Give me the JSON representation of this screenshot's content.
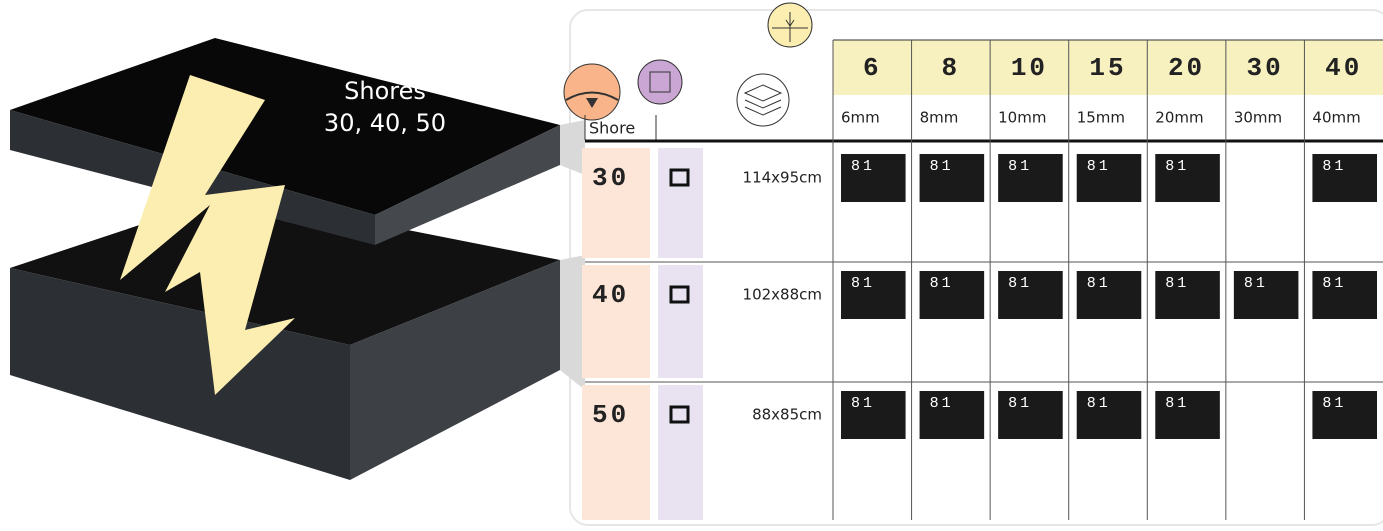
{
  "label": {
    "line1": "Shores",
    "line2": "30, 40, 50"
  },
  "table": {
    "shore_header": "Shore",
    "thickness": [
      "6",
      "8",
      "10",
      "15",
      "20",
      "30",
      "40"
    ],
    "thickness_mm": [
      "6mm",
      "8mm",
      "10mm",
      "15mm",
      "20mm",
      "30mm",
      "40mm"
    ],
    "rows": [
      {
        "shore": "30",
        "size": "114x95cm",
        "cells": [
          "81",
          "81",
          "81",
          "81",
          "81",
          null,
          "81"
        ]
      },
      {
        "shore": "40",
        "size": "102x88cm",
        "cells": [
          "81",
          "81",
          "81",
          "81",
          "81",
          "81",
          "81"
        ]
      },
      {
        "shore": "50",
        "size": "88x85cm",
        "cells": [
          "81",
          "81",
          "81",
          "81",
          "81",
          null,
          "81"
        ]
      }
    ]
  }
}
